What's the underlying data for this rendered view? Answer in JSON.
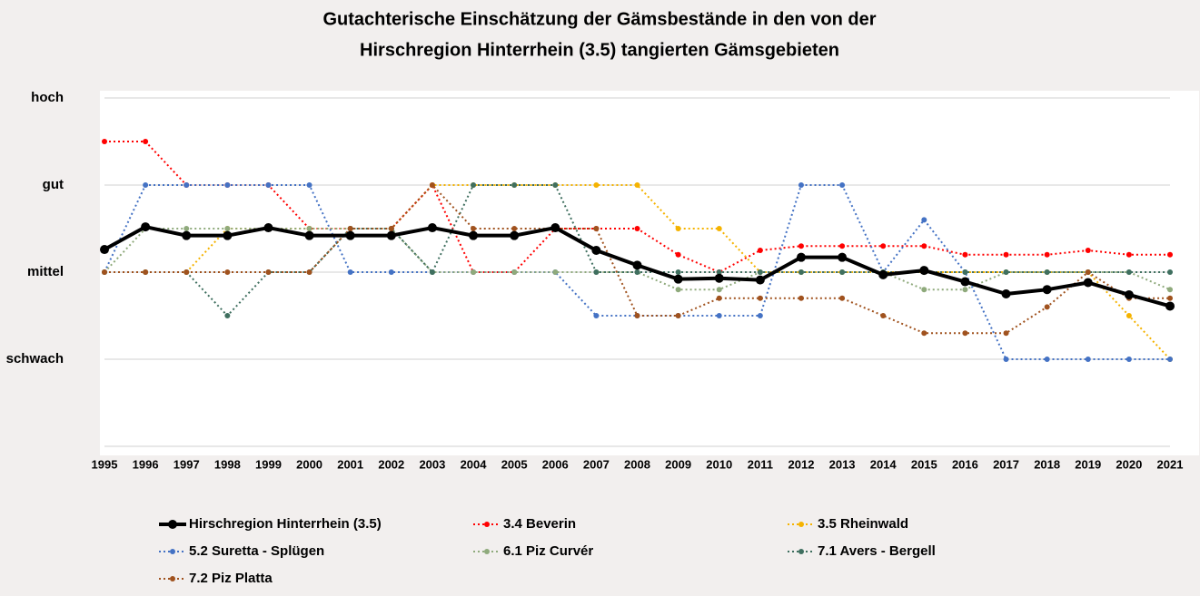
{
  "chart_data": {
    "type": "line",
    "title": [
      "Gutachterische Einschätzung der Gämsbestände in den von der",
      "Hirschregion Hinterrhein (3.5) tangierten Gämsgebieten"
    ],
    "categories": [
      "1995",
      "1996",
      "1997",
      "1998",
      "1999",
      "2000",
      "2001",
      "2002",
      "2003",
      "2004",
      "2005",
      "2006",
      "2007",
      "2008",
      "2009",
      "2010",
      "2011",
      "2012",
      "2013",
      "2014",
      "2015",
      "2016",
      "2017",
      "2018",
      "2019",
      "2020",
      "2021"
    ],
    "ylim": [
      0,
      4
    ],
    "yticks": [
      {
        "value": 1,
        "label": "schwach"
      },
      {
        "value": 2,
        "label": "mittel"
      },
      {
        "value": 3,
        "label": "gut"
      },
      {
        "value": 4,
        "label": "hoch"
      }
    ],
    "grid": true,
    "series": [
      {
        "name": "Hirschregion Hinterrhein (3.5)",
        "color": "#000000",
        "style": "solid",
        "values": [
          2.26,
          2.52,
          2.42,
          2.42,
          2.51,
          2.42,
          2.42,
          2.42,
          2.51,
          2.42,
          2.42,
          2.51,
          2.25,
          2.08,
          1.92,
          1.93,
          1.91,
          2.17,
          2.17,
          1.97,
          2.02,
          1.89,
          1.75,
          1.8,
          1.88,
          1.74,
          1.61
        ]
      },
      {
        "name": "3.4 Beverin",
        "color": "#ff0000",
        "style": "dotted",
        "values": [
          3.5,
          3.5,
          3,
          3,
          3,
          2.5,
          2.5,
          2.5,
          3,
          2,
          2,
          2.5,
          2.5,
          2.5,
          2.2,
          2,
          2.25,
          2.3,
          2.3,
          2.3,
          2.3,
          2.2,
          2.2,
          2.2,
          2.25,
          2.2,
          2.2
        ]
      },
      {
        "name": "3.5 Rheinwald",
        "color": "#f5b300",
        "style": "dotted",
        "values": [
          2,
          2,
          2,
          2.5,
          2.5,
          2.5,
          2.5,
          2.5,
          3,
          3,
          3,
          3,
          3,
          3,
          2.5,
          2.5,
          2,
          2,
          2,
          2,
          2,
          2,
          2,
          2,
          2,
          1.5,
          1
        ]
      },
      {
        "name": "5.2 Suretta - Splügen",
        "color": "#4472c4",
        "style": "dotted",
        "values": [
          2,
          3,
          3,
          3,
          3,
          3,
          2,
          2,
          2,
          2,
          2,
          2,
          1.5,
          1.5,
          1.5,
          1.5,
          1.5,
          3,
          3,
          2,
          2.6,
          2,
          1,
          1,
          1,
          1,
          1
        ]
      },
      {
        "name": "6.1 Piz Curvér",
        "color": "#8faa7c",
        "style": "dotted",
        "values": [
          2,
          2.5,
          2.5,
          2.5,
          2.5,
          2.5,
          2.5,
          2.5,
          2,
          2,
          2,
          2,
          2,
          2,
          1.8,
          1.8,
          2,
          2,
          2,
          2,
          1.8,
          1.8,
          2,
          2,
          2,
          2,
          1.8
        ]
      },
      {
        "name": "7.1 Avers - Bergell",
        "color": "#3f6f5f",
        "style": "dotted",
        "values": [
          2,
          2,
          2,
          1.5,
          2,
          2,
          2.5,
          2.5,
          2,
          3,
          3,
          3,
          2,
          2,
          2,
          2,
          2,
          2,
          2,
          2,
          2,
          2,
          2,
          2,
          2,
          2,
          2
        ]
      },
      {
        "name": "7.2 Piz Platta",
        "color": "#a0521e",
        "style": "dotted",
        "values": [
          2,
          2,
          2,
          2,
          2,
          2,
          2.5,
          2.5,
          3,
          2.5,
          2.5,
          2.5,
          2.5,
          1.5,
          1.5,
          1.7,
          1.7,
          1.7,
          1.7,
          1.5,
          1.3,
          1.3,
          1.3,
          1.6,
          2,
          1.7,
          1.7
        ]
      }
    ]
  }
}
